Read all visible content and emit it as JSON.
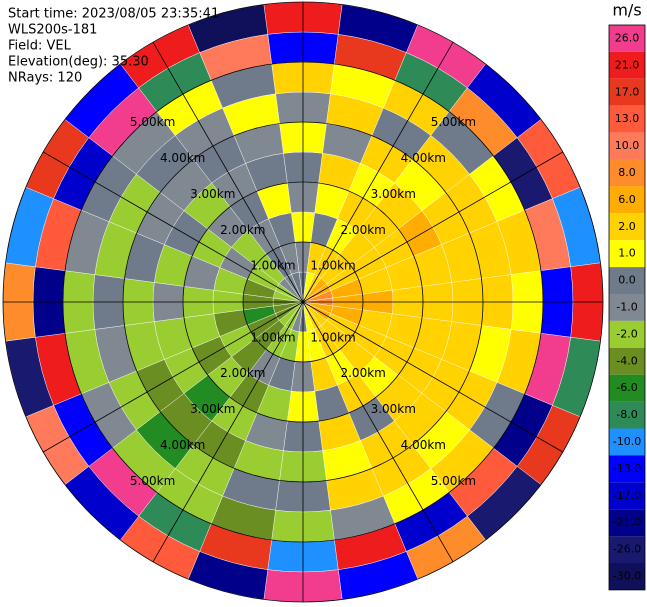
{
  "chart_data": {
    "type": "ppi",
    "header": [
      "Start time: 2023/08/05 23:35:41",
      "WLS200s-181",
      "Field: VEL",
      "Elevation(deg): 35.30",
      "NRays: 120"
    ],
    "azimuths": [
      0,
      15,
      30,
      45,
      60,
      75,
      90,
      105,
      120,
      135,
      150,
      165,
      180,
      195,
      210,
      225,
      240,
      255,
      270,
      285,
      300,
      315,
      330,
      345
    ],
    "ranges_km": [
      0.25,
      0.75,
      1.25,
      1.75,
      2.25,
      2.75,
      3.25,
      3.75,
      4.25,
      4.75
    ],
    "rings_km": [
      1,
      2,
      3,
      4,
      5
    ],
    "ring_labels": [
      "1.00km",
      "2.00km",
      "3.00km",
      "4.00km",
      "5.00km"
    ],
    "values": [
      [
        0,
        -1,
        1,
        -1,
        0,
        1,
        -1,
        2,
        -13,
        21
      ],
      [
        1,
        2,
        0,
        1,
        2,
        -1,
        2,
        1,
        17,
        -21
      ],
      [
        2,
        2,
        1,
        2,
        1,
        2,
        0,
        2,
        -8,
        26
      ],
      [
        6,
        2,
        2,
        2,
        2,
        1,
        2,
        0,
        8,
        -17
      ],
      [
        6,
        2,
        2,
        2,
        6,
        2,
        2,
        1,
        -26,
        13
      ],
      [
        8,
        6,
        2,
        2,
        2,
        2,
        2,
        2,
        10,
        -10
      ],
      [
        8,
        6,
        6,
        2,
        2,
        2,
        2,
        1,
        -13,
        21
      ],
      [
        6,
        6,
        2,
        2,
        2,
        2,
        1,
        2,
        26,
        -8
      ],
      [
        6,
        2,
        2,
        2,
        2,
        2,
        2,
        0,
        -21,
        17
      ],
      [
        2,
        2,
        2,
        1,
        2,
        2,
        1,
        2,
        13,
        -26
      ],
      [
        2,
        2,
        1,
        2,
        0,
        2,
        2,
        1,
        -17,
        8
      ],
      [
        1,
        1,
        2,
        0,
        2,
        1,
        2,
        -1,
        21,
        -13
      ],
      [
        0,
        1,
        -1,
        1,
        0,
        -2,
        0,
        -2,
        -10,
        26
      ],
      [
        -1,
        -2,
        0,
        -2,
        -1,
        -2,
        0,
        -4,
        17,
        -21
      ],
      [
        -2,
        -2,
        -1,
        -4,
        -2,
        -4,
        -2,
        -2,
        -8,
        13
      ],
      [
        -2,
        -4,
        -4,
        -2,
        -6,
        -4,
        -6,
        -2,
        26,
        -17
      ],
      [
        -4,
        -4,
        -2,
        -4,
        -2,
        -4,
        -2,
        -1,
        -13,
        10
      ],
      [
        -4,
        -6,
        -4,
        -2,
        -2,
        -2,
        -1,
        -2,
        21,
        -26
      ],
      [
        -4,
        -4,
        -2,
        -2,
        -1,
        -2,
        0,
        -2,
        -21,
        8
      ],
      [
        -2,
        -4,
        -2,
        -1,
        -2,
        0,
        -2,
        -1,
        13,
        -10
      ],
      [
        -2,
        -2,
        -1,
        -2,
        0,
        -1,
        -2,
        0,
        -17,
        17
      ],
      [
        -1,
        -2,
        -2,
        -1,
        -2,
        -1,
        0,
        -1,
        26,
        -13
      ],
      [
        -1,
        0,
        -1,
        0,
        -1,
        0,
        -1,
        1,
        -8,
        21
      ],
      [
        0,
        -1,
        0,
        1,
        0,
        -1,
        1,
        0,
        10,
        -30
      ]
    ],
    "colorbar": {
      "title": "m/s",
      "ticks": [
        {
          "value": 26,
          "label": "26.0"
        },
        {
          "value": 21,
          "label": "21.0"
        },
        {
          "value": 17,
          "label": "17.0"
        },
        {
          "value": 13,
          "label": "13.0"
        },
        {
          "value": 10,
          "label": "10.0"
        },
        {
          "value": 8,
          "label": "8.0"
        },
        {
          "value": 6,
          "label": "6.0"
        },
        {
          "value": 2,
          "label": "2.0"
        },
        {
          "value": 1,
          "label": "1.0"
        },
        {
          "value": 0,
          "label": "0.0"
        },
        {
          "value": -1,
          "label": "-1.0"
        },
        {
          "value": -2,
          "label": "-2.0"
        },
        {
          "value": -4,
          "label": "-4.0"
        },
        {
          "value": -6,
          "label": "-6.0"
        },
        {
          "value": -8,
          "label": "-8.0"
        },
        {
          "value": -10,
          "label": "-10.0"
        },
        {
          "value": -13,
          "label": "-13.0"
        },
        {
          "value": -17,
          "label": "-17.0"
        },
        {
          "value": -21,
          "label": "-21.0"
        },
        {
          "value": -26,
          "label": "-26.0"
        },
        {
          "value": -30,
          "label": "-30.0"
        }
      ],
      "colors": [
        "#f23c8e",
        "#ee1c1c",
        "#e8391e",
        "#ff5a3c",
        "#ff7a5a",
        "#ff8c2a",
        "#ffad00",
        "#ffd200",
        "#ffff00",
        "#6f7b8b",
        "#808892",
        "#9acd32",
        "#6b8e23",
        "#228b22",
        "#2e8b57",
        "#1e90ff",
        "#0000ff",
        "#0000cd",
        "#00008b",
        "#191970",
        "#10105a"
      ]
    }
  }
}
